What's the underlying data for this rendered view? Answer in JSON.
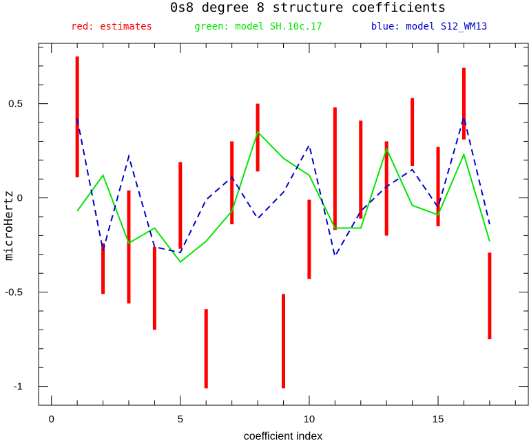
{
  "chart_data": {
    "type": "line",
    "title": "0s8 degree 8 structure coefficients",
    "xlabel": "coefficient index",
    "ylabel": "microHertz",
    "legend": [
      {
        "text": "red: estimates",
        "color": "#ff0000"
      },
      {
        "text": "green: model SH.10c.17",
        "color": "#00e600"
      },
      {
        "text": "blue: model S12_WM13",
        "color": "#0000cc"
      }
    ],
    "xlim": [
      -0.5,
      18.5
    ],
    "ylim": [
      -1.1,
      0.82
    ],
    "x_ticks": [
      0,
      5,
      10,
      15
    ],
    "y_ticks": [
      -1,
      -0.5,
      0,
      0.5
    ],
    "y_tick_labels": [
      "-1",
      "-0.5",
      "0",
      "0.5"
    ],
    "x_minor_step": 1,
    "y_minor_step": 0.1,
    "grid": false,
    "estimates": [
      {
        "x": 1,
        "low": 0.11,
        "high": 0.75
      },
      {
        "x": 2,
        "low": -0.51,
        "high": -0.24
      },
      {
        "x": 3,
        "low": -0.56,
        "high": 0.04
      },
      {
        "x": 4,
        "low": -0.7,
        "high": -0.26
      },
      {
        "x": 5,
        "low": -0.27,
        "high": 0.19
      },
      {
        "x": 6,
        "low": -1.01,
        "high": -0.59
      },
      {
        "x": 7,
        "low": -0.14,
        "high": 0.3
      },
      {
        "x": 8,
        "low": 0.14,
        "high": 0.5
      },
      {
        "x": 9,
        "low": -1.01,
        "high": -0.51
      },
      {
        "x": 10,
        "low": -0.43,
        "high": -0.01
      },
      {
        "x": 11,
        "low": -0.17,
        "high": 0.48
      },
      {
        "x": 12,
        "low": -0.11,
        "high": 0.41
      },
      {
        "x": 13,
        "low": -0.2,
        "high": 0.3
      },
      {
        "x": 14,
        "low": 0.17,
        "high": 0.53
      },
      {
        "x": 15,
        "low": -0.15,
        "high": 0.27
      },
      {
        "x": 16,
        "low": 0.31,
        "high": 0.69
      },
      {
        "x": 17,
        "low": -0.75,
        "high": -0.29
      }
    ],
    "series": [
      {
        "name": "model SH.10c.17",
        "color": "#00e600",
        "style": "solid",
        "x": [
          1,
          2,
          3,
          4,
          5,
          6,
          7,
          8,
          9,
          10,
          11,
          12,
          13,
          14,
          15,
          16,
          17
        ],
        "values": [
          -0.07,
          0.12,
          -0.24,
          -0.16,
          -0.34,
          -0.23,
          -0.07,
          0.35,
          0.21,
          0.12,
          -0.16,
          -0.16,
          0.26,
          -0.04,
          -0.09,
          0.23,
          -0.23
        ]
      },
      {
        "name": "model S12_WM13",
        "color": "#0000cc",
        "style": "dashed",
        "x": [
          1,
          2,
          3,
          4,
          5,
          6,
          7,
          8,
          9,
          10,
          11,
          12,
          13,
          14,
          15,
          16,
          17
        ],
        "values": [
          0.42,
          -0.28,
          0.22,
          -0.26,
          -0.29,
          -0.01,
          0.11,
          -0.11,
          0.03,
          0.28,
          -0.31,
          -0.07,
          0.06,
          0.15,
          -0.05,
          0.43,
          -0.14
        ]
      }
    ]
  }
}
